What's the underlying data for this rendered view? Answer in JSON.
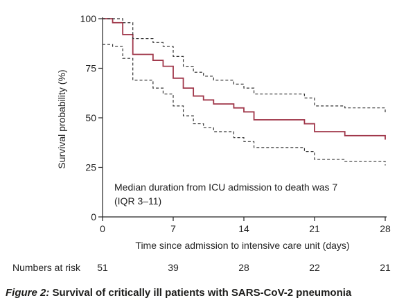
{
  "caption": {
    "figure_label": "Figure 2:",
    "text": "Survival of critically ill patients with SARS-CoV-2 pneumonia"
  },
  "colors": {
    "survival_line": "#a0374a",
    "ci_line": "#333333",
    "axis": "#222222"
  },
  "chart_data": {
    "type": "line",
    "style": "step",
    "title": "",
    "xlabel": "Time since admission to intensive care unit (days)",
    "ylabel": "Survival probability (%)",
    "xlim": [
      0,
      28
    ],
    "ylim": [
      0,
      100
    ],
    "xticks": [
      0,
      7,
      14,
      21,
      28
    ],
    "yticks": [
      0,
      25,
      50,
      75,
      100
    ],
    "grid": false,
    "annotation": [
      "Median duration from ICU admission to death was 7",
      "(IQR 3–11)"
    ],
    "numbers_at_risk": {
      "label": "Numbers at risk",
      "x": [
        0,
        7,
        14,
        21,
        28
      ],
      "values": [
        "51",
        "39",
        "28",
        "22",
        "21"
      ]
    },
    "series": [
      {
        "role": "estimate",
        "x": [
          0,
          1,
          2,
          3,
          5,
          6,
          7,
          8,
          9,
          10,
          11,
          13,
          14,
          15,
          17,
          20,
          21,
          24,
          28
        ],
        "y": [
          100,
          98,
          92,
          82,
          79,
          76,
          70,
          65,
          61,
          59,
          57,
          55,
          53,
          49,
          49,
          47,
          43,
          41,
          39
        ]
      },
      {
        "role": "upper-ci",
        "x": [
          0,
          1,
          2,
          3,
          5,
          6,
          7,
          8,
          9,
          10,
          11,
          13,
          14,
          15,
          17,
          20,
          21,
          24,
          28
        ],
        "y": [
          100,
          100,
          98,
          90,
          88,
          86,
          81,
          76,
          73,
          71,
          69,
          67,
          65,
          62,
          62,
          60,
          56,
          55,
          52
        ]
      },
      {
        "role": "lower-ci",
        "x": [
          0,
          1,
          2,
          3,
          5,
          6,
          7,
          8,
          9,
          10,
          11,
          13,
          14,
          15,
          17,
          20,
          21,
          24,
          28
        ],
        "y": [
          87,
          86,
          80,
          69,
          65,
          62,
          56,
          51,
          47,
          45,
          43,
          40,
          38,
          35,
          35,
          33,
          29,
          28,
          26
        ]
      }
    ]
  }
}
